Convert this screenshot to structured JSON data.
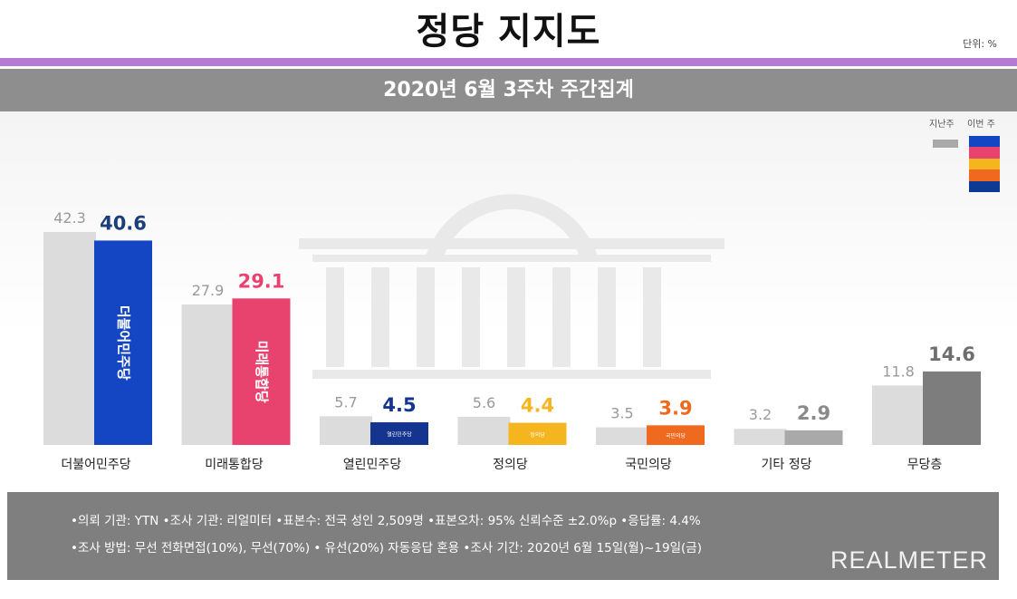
{
  "header": {
    "title": "정당 지지도",
    "unit": "단위: %",
    "period": "2020년 6월 3주차 주간집계"
  },
  "legend": {
    "prev_label": "지난주",
    "cur_label": "이번 주",
    "cur_colors": [
      "#1446c4",
      "#e8436f",
      "#f5b51e",
      "#ef6a1e",
      "#0d3a94"
    ]
  },
  "chart_data": {
    "type": "bar",
    "categories": [
      "더불어민주당",
      "미래통합당",
      "열린민주당",
      "정의당",
      "국민의당",
      "기타 정당",
      "무당층"
    ],
    "series": [
      {
        "name": "지난주",
        "values": [
          42.3,
          27.9,
          5.7,
          5.6,
          3.5,
          3.2,
          11.8
        ]
      },
      {
        "name": "이번 주",
        "values": [
          40.6,
          29.1,
          4.5,
          4.4,
          3.9,
          2.9,
          14.6
        ]
      }
    ],
    "colors_prev": [
      "#dcdcdc",
      "#dcdcdc",
      "#dcdcdc",
      "#dcdcdc",
      "#dcdcdc",
      "#dcdcdc",
      "#dcdcdc"
    ],
    "colors_cur": [
      "#1446c4",
      "#e8436f",
      "#14358f",
      "#f5b51e",
      "#ef6a1e",
      "#a9a9a9",
      "#7d7d7d"
    ],
    "label_colors_cur": [
      "#1b3f7a",
      "#e8436f",
      "#14358f",
      "#f5b51e",
      "#ef6a1e",
      "#8a8a8a",
      "#6e6e6e"
    ],
    "bar_inner_labels": [
      "더불어민주당",
      "미래통합당",
      "열린민주당",
      "정의당",
      "국민의당",
      "",
      ""
    ],
    "ylim": [
      0,
      45
    ]
  },
  "footer": {
    "line1": "•의뢰 기관: YTN •조사 기관: 리얼미터 •표본수: 전국 성인 2,509명 •표본오차: 95% 신뢰수준 ±2.0%p •응답률: 4.4%",
    "line2": "•조사 방법: 무선 전화면접(10%), 무선(70%) • 유선(20%) 자동응답 혼용 •조사 기간: 2020년 6월 15일(월)~19일(금)",
    "brand": "REALMETER"
  }
}
